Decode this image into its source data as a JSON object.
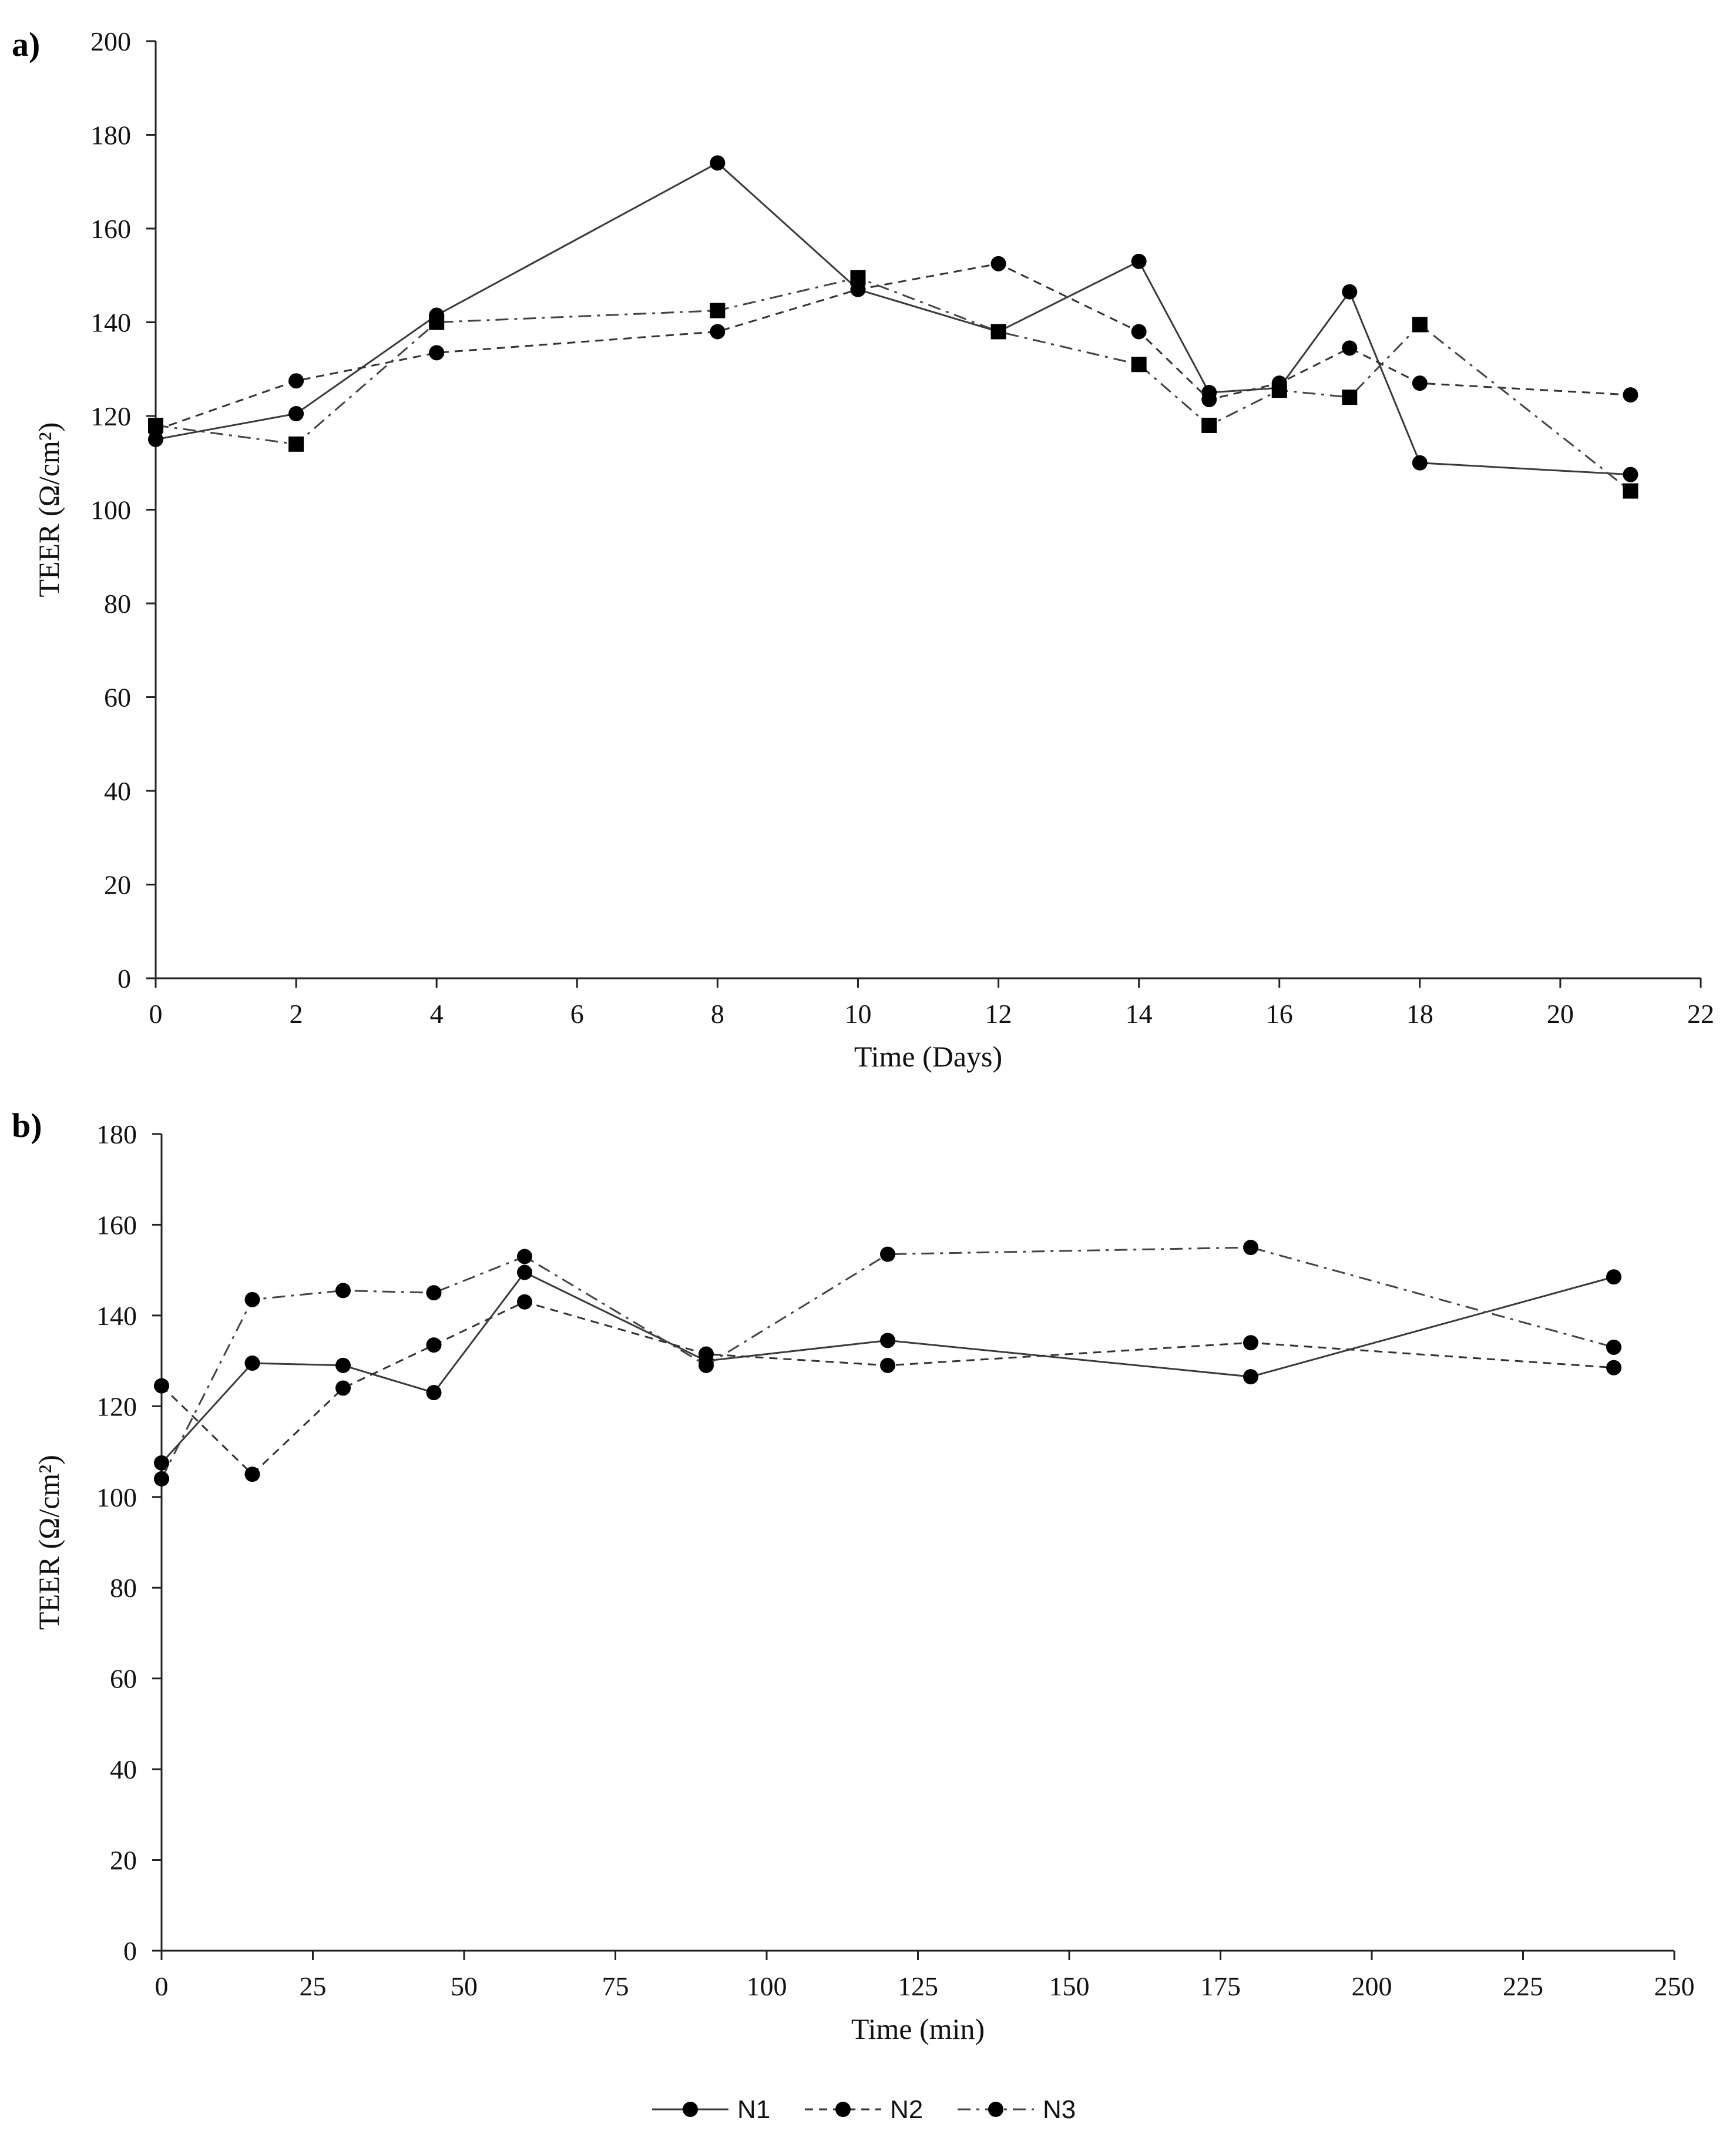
{
  "chart_data": [
    {
      "panel_label": "a)",
      "type": "line",
      "xlabel": "Time (Days)",
      "ylabel": "TEER (Ω/cm²)",
      "xlim": [
        0,
        22
      ],
      "ylim": [
        0,
        200
      ],
      "xticks": [
        0,
        2,
        4,
        6,
        8,
        10,
        12,
        14,
        16,
        18,
        20,
        22
      ],
      "yticks": [
        0,
        20,
        40,
        60,
        80,
        100,
        120,
        140,
        160,
        180,
        200
      ],
      "grid": false,
      "series": [
        {
          "name": "N1",
          "line": "solid",
          "marker": "circle",
          "x": [
            0,
            2,
            4,
            8,
            10,
            12,
            14,
            15,
            16,
            17,
            18,
            21
          ],
          "y": [
            115,
            120.5,
            141.5,
            174,
            147,
            138,
            153,
            125,
            126,
            146.5,
            110,
            107.5
          ]
        },
        {
          "name": "N2",
          "line": "dashed",
          "marker": "circle",
          "x": [
            0,
            2,
            4,
            8,
            10,
            12,
            14,
            15,
            16,
            17,
            18,
            21
          ],
          "y": [
            117,
            127.5,
            133.5,
            138,
            147,
            152.5,
            138,
            123.5,
            127,
            134.5,
            127,
            124.5
          ]
        },
        {
          "name": "N3",
          "line": "dashdot",
          "marker": "square",
          "x": [
            0,
            2,
            4,
            8,
            10,
            12,
            14,
            15,
            16,
            17,
            18,
            21
          ],
          "y": [
            118,
            114,
            140,
            142.5,
            149.5,
            138,
            131,
            118,
            125.5,
            124,
            139.5,
            104
          ]
        }
      ]
    },
    {
      "panel_label": "b)",
      "type": "line",
      "xlabel": "Time (min)",
      "ylabel": "TEER (Ω/cm²)",
      "xlim": [
        0,
        250
      ],
      "ylim": [
        0,
        180
      ],
      "xticks": [
        0,
        25,
        50,
        75,
        100,
        125,
        150,
        175,
        200,
        225,
        250
      ],
      "yticks": [
        0,
        20,
        40,
        60,
        80,
        100,
        120,
        140,
        160,
        180
      ],
      "grid": false,
      "series": [
        {
          "name": "N1",
          "line": "solid",
          "marker": "circle",
          "x": [
            0,
            15,
            30,
            45,
            60,
            90,
            120,
            180,
            240
          ],
          "y": [
            107.5,
            129.5,
            129,
            123,
            149.5,
            130,
            134.5,
            126.5,
            148.5
          ]
        },
        {
          "name": "N2",
          "line": "dashed",
          "marker": "circle",
          "x": [
            0,
            15,
            30,
            45,
            60,
            90,
            120,
            180,
            240
          ],
          "y": [
            124.5,
            105,
            124,
            133.5,
            143,
            131.5,
            129,
            134,
            128.5
          ]
        },
        {
          "name": "N3",
          "line": "dashdot",
          "marker": "circle",
          "x": [
            0,
            15,
            30,
            45,
            60,
            90,
            120,
            180,
            240
          ],
          "y": [
            104,
            143.5,
            145.5,
            145,
            153,
            129,
            153.5,
            155,
            133
          ]
        }
      ]
    }
  ],
  "legend": {
    "placement": "bottom-center",
    "items": [
      {
        "name": "N1",
        "line": "solid"
      },
      {
        "name": "N2",
        "line": "dashed"
      },
      {
        "name": "N3",
        "line": "dashdot"
      }
    ]
  }
}
